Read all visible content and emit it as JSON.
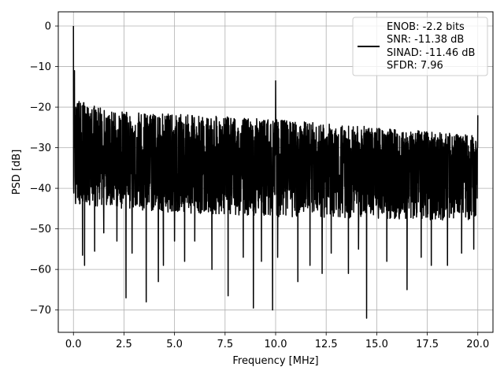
{
  "chart_data": {
    "type": "line",
    "xlabel": "Frequency [MHz]",
    "ylabel": "PSD [dB]",
    "xlim": [
      -0.75,
      20.75
    ],
    "ylim": [
      -75.5,
      3.5
    ],
    "grid": true,
    "x_ticks": [
      0.0,
      2.5,
      5.0,
      7.5,
      10.0,
      12.5,
      15.0,
      17.5,
      20.0
    ],
    "x_tick_labels": [
      "0.0",
      "2.5",
      "5.0",
      "7.5",
      "10.0",
      "12.5",
      "15.0",
      "17.5",
      "20.0"
    ],
    "y_ticks": [
      0,
      -10,
      -20,
      -30,
      -40,
      -50,
      -60,
      -70
    ],
    "y_tick_labels": [
      "0",
      "−10",
      "−20",
      "−30",
      "−40",
      "−50",
      "−60",
      "−70"
    ],
    "legend": {
      "placement": "top-right",
      "lines": [
        "ENOB: -2.2 bits",
        "SNR: -11.38 dB",
        "SINAD: -11.46 dB",
        "SFDR: 7.96"
      ]
    },
    "series": [
      {
        "color": "#000000",
        "noise_band": {
          "x_range": [
            0.0,
            20.0
          ],
          "upper": [
            [
              0.0,
              -18
            ],
            [
              2.0,
              -21
            ],
            [
              10.0,
              -23
            ],
            [
              15.0,
              -25
            ],
            [
              20.0,
              -27
            ]
          ],
          "median": [
            [
              0.0,
              -35
            ],
            [
              20.0,
              -36
            ]
          ],
          "lower": [
            [
              0.0,
              -44
            ],
            [
              5.0,
              -46
            ],
            [
              10.0,
              -47
            ],
            [
              20.0,
              -48
            ]
          ]
        },
        "peaks": [
          {
            "x": 0.0,
            "y": 0.0
          },
          {
            "x": 0.05,
            "y": -11
          },
          {
            "x": 0.12,
            "y": -20
          },
          {
            "x": 10.0,
            "y": -13.5
          },
          {
            "x": 20.0,
            "y": -22
          }
        ],
        "dips": [
          {
            "x": 0.45,
            "y": -56.5
          },
          {
            "x": 0.55,
            "y": -59
          },
          {
            "x": 1.05,
            "y": -55.5
          },
          {
            "x": 1.5,
            "y": -51
          },
          {
            "x": 2.15,
            "y": -53
          },
          {
            "x": 2.6,
            "y": -67
          },
          {
            "x": 2.9,
            "y": -56
          },
          {
            "x": 3.6,
            "y": -68
          },
          {
            "x": 4.2,
            "y": -63
          },
          {
            "x": 4.45,
            "y": -59
          },
          {
            "x": 5.0,
            "y": -53
          },
          {
            "x": 5.5,
            "y": -58
          },
          {
            "x": 6.0,
            "y": -53
          },
          {
            "x": 6.85,
            "y": -60
          },
          {
            "x": 7.65,
            "y": -66.5
          },
          {
            "x": 8.4,
            "y": -57
          },
          {
            "x": 8.9,
            "y": -69.5
          },
          {
            "x": 9.3,
            "y": -58
          },
          {
            "x": 9.85,
            "y": -70
          },
          {
            "x": 10.1,
            "y": -57
          },
          {
            "x": 11.1,
            "y": -63
          },
          {
            "x": 11.7,
            "y": -59
          },
          {
            "x": 12.3,
            "y": -61
          },
          {
            "x": 12.75,
            "y": -56
          },
          {
            "x": 13.6,
            "y": -61
          },
          {
            "x": 14.1,
            "y": -55
          },
          {
            "x": 14.5,
            "y": -72
          },
          {
            "x": 15.5,
            "y": -58
          },
          {
            "x": 16.5,
            "y": -65
          },
          {
            "x": 17.2,
            "y": -57
          },
          {
            "x": 17.7,
            "y": -59
          },
          {
            "x": 18.5,
            "y": -59
          },
          {
            "x": 19.2,
            "y": -56
          },
          {
            "x": 19.8,
            "y": -55
          }
        ]
      }
    ]
  }
}
